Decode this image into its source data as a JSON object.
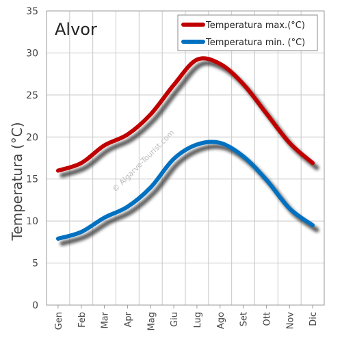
{
  "chart_data": {
    "type": "line",
    "title": "Alvor",
    "ylabel": "Temperatura (°C)",
    "xlabel": "",
    "ylim": [
      0,
      35
    ],
    "yticks": [
      0,
      5,
      10,
      15,
      20,
      25,
      30,
      35
    ],
    "categories": [
      "Gen",
      "Feb",
      "Mar",
      "Apr",
      "Mag",
      "Giu",
      "Lug",
      "Ago",
      "Set",
      "Ott",
      "Nov",
      "Dic"
    ],
    "series": [
      {
        "name": "Temperatura max.(°C)",
        "color": "#c00000",
        "values": [
          16.0,
          16.9,
          19.0,
          20.3,
          22.7,
          26.2,
          29.2,
          28.7,
          26.3,
          22.8,
          19.3,
          16.9
        ]
      },
      {
        "name": "Temperatura min. (°C)",
        "color": "#0070c0",
        "values": [
          7.9,
          8.7,
          10.4,
          11.7,
          14.0,
          17.4,
          19.1,
          19.3,
          17.7,
          14.9,
          11.5,
          9.5
        ]
      }
    ],
    "grid": true,
    "legend": "top-right",
    "watermark": "© Algarve-Tourist.com"
  }
}
